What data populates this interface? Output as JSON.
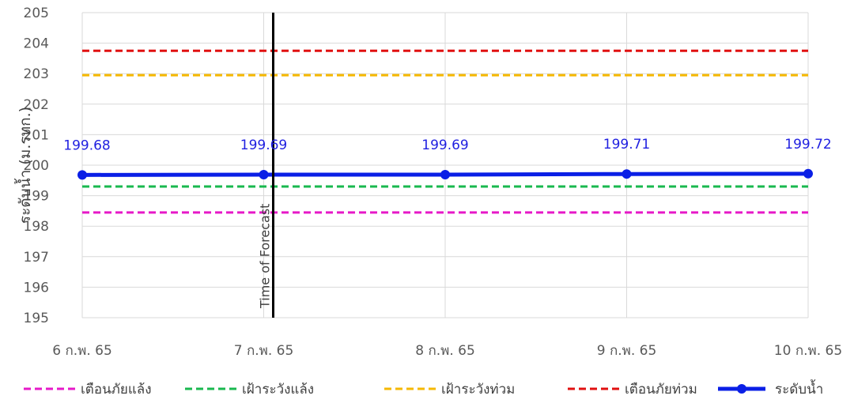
{
  "chart_data": {
    "type": "line",
    "title": "",
    "xlabel": "",
    "ylabel": "ระดับน้ำ (ม.รทก.)",
    "ylim": [
      195,
      205
    ],
    "yticks": [
      "195",
      "196",
      "197",
      "198",
      "199",
      "200",
      "201",
      "202",
      "203",
      "204",
      "205"
    ],
    "categories": [
      "6 ก.พ. 65",
      "7 ก.พ. 65",
      "8 ก.พ. 65",
      "9 ก.พ. 65",
      "10 ก.พ. 65"
    ],
    "grid": true,
    "legend_position": "bottom",
    "annotation": {
      "text": "Time of Forecast",
      "x": "7 ก.พ. 65"
    },
    "series": [
      {
        "name": "เตือนภัยแล้ง",
        "values": [
          198.45,
          198.45,
          198.45,
          198.45,
          198.45
        ],
        "color": "#e619c8",
        "style": "dashed"
      },
      {
        "name": "เฝ้าระวังแล้ง",
        "values": [
          199.3,
          199.3,
          199.3,
          199.3,
          199.3
        ],
        "color": "#19b84f",
        "style": "dashed"
      },
      {
        "name": "เฝ้าระวังท่วม",
        "values": [
          202.95,
          202.95,
          202.95,
          202.95,
          202.95
        ],
        "color": "#f5b800",
        "style": "dashed"
      },
      {
        "name": "เตือนภัยท่วม",
        "values": [
          203.75,
          203.75,
          203.75,
          203.75,
          203.75
        ],
        "color": "#e01010",
        "style": "dashed"
      },
      {
        "name": "ระดับน้ำ",
        "values": [
          199.68,
          199.69,
          199.69,
          199.71,
          199.72
        ],
        "labels": [
          "199.68",
          "199.69",
          "199.69",
          "199.71",
          "199.72"
        ],
        "color": "#0a1fe6",
        "style": "solid-markers"
      }
    ]
  }
}
